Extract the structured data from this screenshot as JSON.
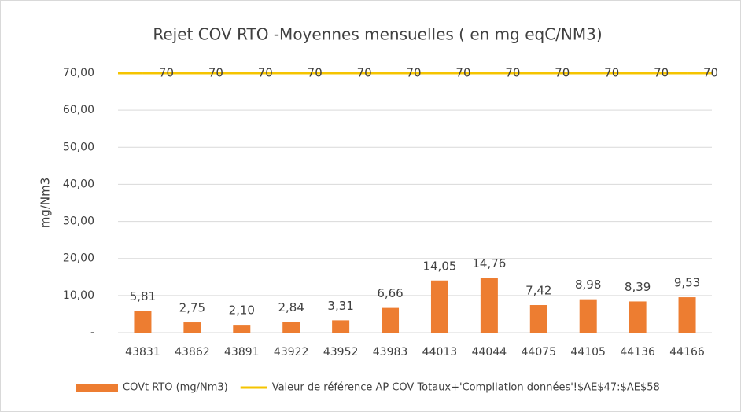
{
  "chart_data": {
    "type": "bar",
    "title": "Rejet COV RTO -Moyennes mensuelles ( en mg eqC/NM3)",
    "y_label": "mg/Nm3",
    "categories": [
      "43831",
      "43862",
      "43891",
      "43922",
      "43952",
      "43983",
      "44013",
      "44044",
      "44075",
      "44105",
      "44136",
      "44166"
    ],
    "series": [
      {
        "name": "COVt RTO  (mg/Nm3)",
        "type": "bar",
        "color": "#ed7d31",
        "values": [
          5.81,
          2.75,
          2.1,
          2.84,
          3.31,
          6.66,
          14.05,
          14.76,
          7.42,
          8.98,
          8.39,
          9.53
        ],
        "value_labels": [
          "5,81",
          "2,75",
          "2,10",
          "2,84",
          "3,31",
          "6,66",
          "14,05",
          "14,76",
          "7,42",
          "8,98",
          "8,39",
          "9,53"
        ]
      },
      {
        "name": "Valeur de référence AP COV Totaux+'Compilation données'!$AE$47:$AE$58",
        "type": "line",
        "color": "#f5c400",
        "values": [
          70,
          70,
          70,
          70,
          70,
          70,
          70,
          70,
          70,
          70,
          70,
          70
        ]
      }
    ],
    "ylim": [
      0,
      70
    ],
    "yticks": [
      {
        "value": 0,
        "label": "-"
      },
      {
        "value": 10,
        "label": "10,00"
      },
      {
        "value": 20,
        "label": "20,00"
      },
      {
        "value": 30,
        "label": "30,00"
      },
      {
        "value": 40,
        "label": "40,00"
      },
      {
        "value": 50,
        "label": "50,00"
      },
      {
        "value": 60,
        "label": "60,00"
      },
      {
        "value": 70,
        "label": "70,00"
      }
    ],
    "grid": true,
    "legend": "bottom"
  }
}
